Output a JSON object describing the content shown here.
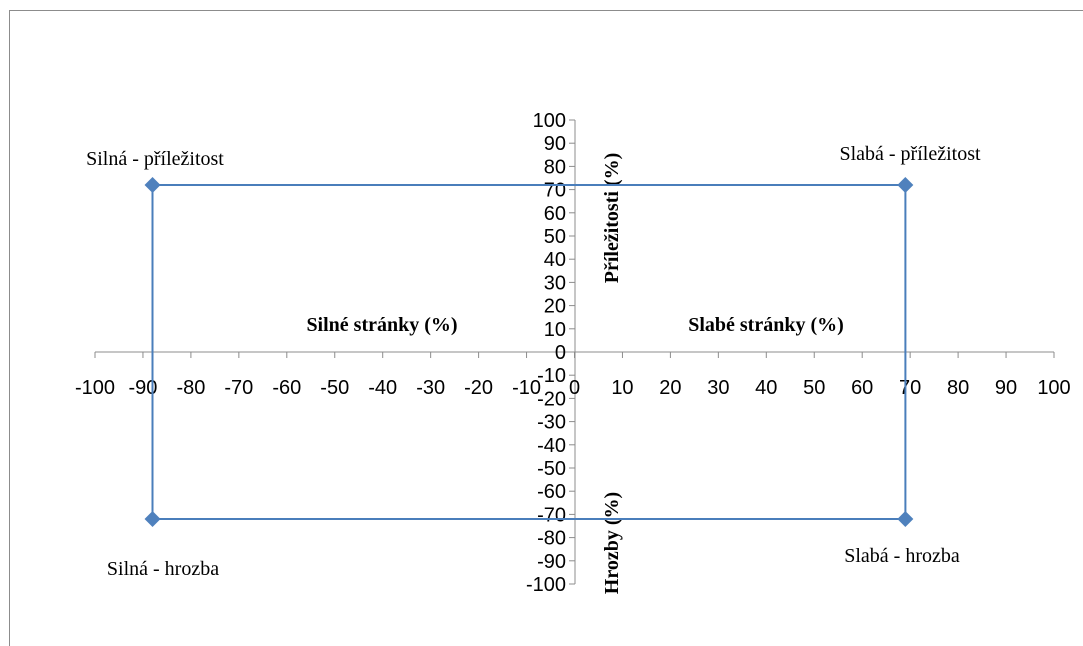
{
  "chart_data": {
    "type": "scatter",
    "x_ticks": [
      "-100",
      "-90",
      "-80",
      "-70",
      "-60",
      "-50",
      "-40",
      "-30",
      "-20",
      "-10",
      "0",
      "10",
      "20",
      "30",
      "40",
      "50",
      "60",
      "70",
      "80",
      "90",
      "100"
    ],
    "y_ticks": [
      "100",
      "90",
      "80",
      "70",
      "60",
      "50",
      "40",
      "30",
      "20",
      "10",
      "0",
      "-10",
      "-20",
      "-30",
      "-40",
      "-50",
      "-60",
      "-70",
      "-80",
      "-90",
      "-100"
    ],
    "xlim": [
      -100,
      100
    ],
    "ylim": [
      -100,
      100
    ],
    "quadrant_labels": {
      "left": "Silné  stránky (%)",
      "right": "Slabé stránky (%)",
      "top": "Příležitosti (%)",
      "bottom": "Hrozby (%)"
    },
    "points": [
      {
        "x": -88,
        "y": 72,
        "label": "Silná - příležitost"
      },
      {
        "x": 69,
        "y": 72,
        "label": "Slabá - příležitost"
      },
      {
        "x": 69,
        "y": -72,
        "label": "Slabá - hrozba"
      },
      {
        "x": -88,
        "y": -72,
        "label": "Silná - hrozba"
      }
    ],
    "series_color": "#4a7ebb",
    "marker_color": "#4f81bd",
    "legend": "none",
    "grid": false
  }
}
